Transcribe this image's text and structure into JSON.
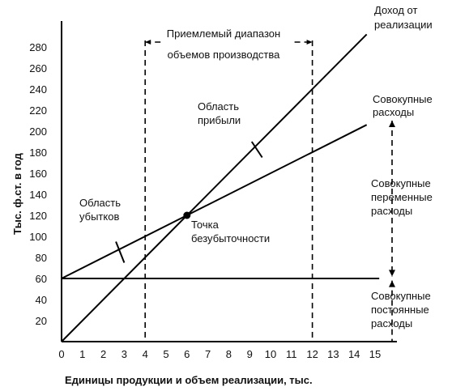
{
  "chart_data": {
    "type": "line",
    "xlabel": "Единицы продукции и объем реализации, тыс.",
    "ylabel": "Тыс. ф.ст. в год",
    "xlim": [
      0,
      15
    ],
    "ylim": [
      0,
      290
    ],
    "x_ticks": [
      "0",
      "1",
      "2",
      "3",
      "4",
      "5",
      "6",
      "7",
      "8",
      "9",
      "10",
      "11",
      "12",
      "13",
      "14",
      "15"
    ],
    "y_ticks": [
      "20",
      "40",
      "60",
      "80",
      "100",
      "120",
      "140",
      "160",
      "180",
      "200",
      "220",
      "240",
      "260",
      "280"
    ],
    "series": [
      {
        "name_lines": [
          "Доход от",
          "реализации"
        ],
        "x": [
          0,
          15
        ],
        "y": [
          0,
          300
        ]
      },
      {
        "name_lines": [
          "Совокупные",
          "расходы"
        ],
        "x": [
          0,
          15
        ],
        "y": [
          60,
          210
        ]
      },
      {
        "name_lines": [
          "Совокупные",
          "постоянные",
          "расходы"
        ],
        "x": [
          0,
          15
        ],
        "y": [
          60,
          60
        ]
      }
    ],
    "break_even": {
      "x": 6,
      "y": 120,
      "label_lines": [
        "Точка",
        "безубыточности"
      ]
    },
    "range": {
      "x_from": 4,
      "x_to": 12,
      "label_lines": [
        "Приемлемый диапазон",
        "объемов производства"
      ]
    },
    "annotations": {
      "profit_lines": [
        "Область",
        "прибыли"
      ],
      "loss_lines": [
        "Область",
        "убытков"
      ],
      "variable_lines": [
        "Совокупные",
        "переменные",
        "расходы"
      ]
    }
  }
}
